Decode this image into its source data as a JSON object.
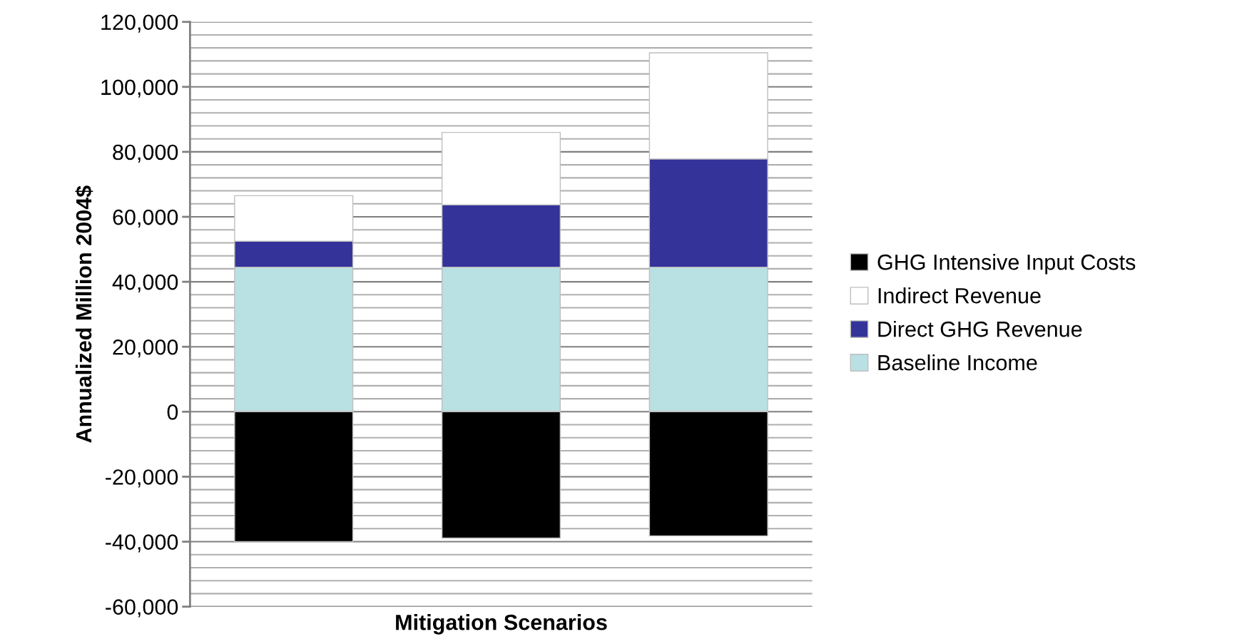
{
  "chart_data": {
    "type": "bar",
    "stacked": true,
    "xlabel": "Mitigation Scenarios",
    "ylabel": "Annualized Million 2004$",
    "categories": [
      null,
      null,
      null
    ],
    "series": [
      {
        "name": "Baseline Income",
        "color": "#b9e0e3",
        "values": [
          44500,
          44500,
          44500
        ]
      },
      {
        "name": "Direct GHG Revenue",
        "color": "#333399",
        "values": [
          8000,
          19200,
          33300
        ]
      },
      {
        "name": "Indirect Revenue",
        "color": "#ffffff",
        "values": [
          14000,
          22300,
          32700
        ]
      },
      {
        "name": "GHG Intensive Input Costs",
        "color": "#000000",
        "values": [
          -40000,
          -38900,
          -38200
        ]
      }
    ],
    "ylim": [
      -60000,
      120000
    ],
    "yticks": [
      {
        "value": -60000,
        "label": "-60,000"
      },
      {
        "value": -56000,
        "label": null
      },
      {
        "value": -52000,
        "label": null
      },
      {
        "value": -48000,
        "label": null
      },
      {
        "value": -44000,
        "label": null
      },
      {
        "value": -40000,
        "label": "-40,000"
      },
      {
        "value": -36000,
        "label": null
      },
      {
        "value": -32000,
        "label": null
      },
      {
        "value": -28000,
        "label": null
      },
      {
        "value": -24000,
        "label": null
      },
      {
        "value": -20000,
        "label": "-20,000"
      },
      {
        "value": -16000,
        "label": null
      },
      {
        "value": -12000,
        "label": null
      },
      {
        "value": -8000,
        "label": null
      },
      {
        "value": -4000,
        "label": null
      },
      0,
      {
        "value": 4000,
        "label": null
      },
      {
        "value": 8000,
        "label": null
      },
      {
        "value": 12000,
        "label": null
      },
      {
        "value": 16000,
        "label": null
      },
      {
        "value": 20000,
        "label": "20,000"
      },
      {
        "value": 24000,
        "label": null
      },
      {
        "value": 28000,
        "label": null
      },
      {
        "value": 32000,
        "label": null
      },
      {
        "value": 36000,
        "label": null
      },
      {
        "value": 40000,
        "label": "40,000"
      },
      {
        "value": 44000,
        "label": null
      },
      {
        "value": 48000,
        "label": null
      },
      {
        "value": 52000,
        "label": null
      },
      {
        "value": 56000,
        "label": null
      },
      {
        "value": 60000,
        "label": "60,000"
      },
      {
        "value": 64000,
        "label": null
      },
      {
        "value": 68000,
        "label": null
      },
      {
        "value": 72000,
        "label": null
      },
      {
        "value": 76000,
        "label": null
      },
      {
        "value": 80000,
        "label": "80,000"
      },
      {
        "value": 84000,
        "label": null
      },
      {
        "value": 88000,
        "label": null
      },
      {
        "value": 92000,
        "label": null
      },
      {
        "value": 96000,
        "label": null
      },
      {
        "value": 100000,
        "label": "100,000"
      },
      {
        "value": 104000,
        "label": null
      },
      {
        "value": 108000,
        "label": null
      },
      {
        "value": 112000,
        "label": null
      },
      {
        "value": 116000,
        "label": null
      },
      {
        "value": 120000,
        "label": "120,000"
      }
    ],
    "grid": "y",
    "legend": "right"
  }
}
